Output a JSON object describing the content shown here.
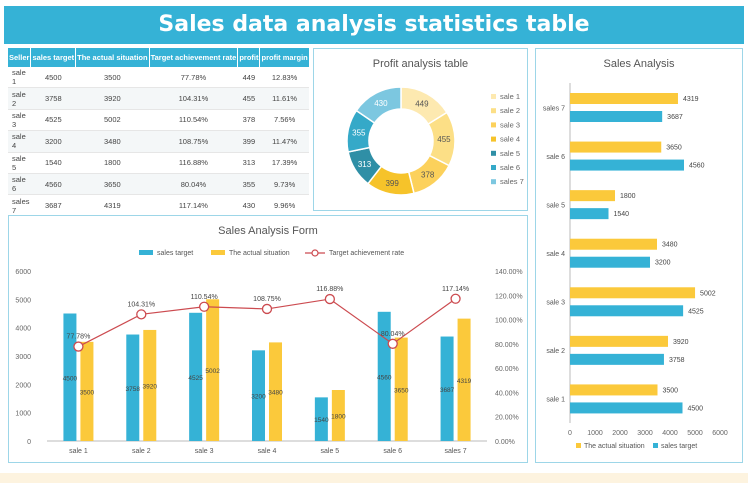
{
  "title": "Sales data analysis statistics table",
  "colors": {
    "banner": "#35b2d6",
    "target": "#35b2d6",
    "actual": "#fbc93b",
    "rate": "#cc4b50"
  },
  "table": {
    "headers": [
      "Seller",
      "sales target",
      "The actual situation",
      "Target achievement rate",
      "profit",
      "profit margin"
    ],
    "rows": [
      [
        "sale 1",
        "4500",
        "3500",
        "77.78%",
        "449",
        "12.83%"
      ],
      [
        "sale 2",
        "3758",
        "3920",
        "104.31%",
        "455",
        "11.61%"
      ],
      [
        "sale 3",
        "4525",
        "5002",
        "110.54%",
        "378",
        "7.56%"
      ],
      [
        "sale 4",
        "3200",
        "3480",
        "108.75%",
        "399",
        "11.47%"
      ],
      [
        "sale 5",
        "1540",
        "1800",
        "116.88%",
        "313",
        "17.39%"
      ],
      [
        "sale 6",
        "4560",
        "3650",
        "80.04%",
        "355",
        "9.73%"
      ],
      [
        "sales 7",
        "3687",
        "4319",
        "117.14%",
        "430",
        "9.96%"
      ]
    ]
  },
  "chart_data": [
    {
      "type": "pie",
      "title": "Profit analysis table",
      "categories": [
        "sale 1",
        "sale 2",
        "sale 3",
        "sale 4",
        "sale 5",
        "sale 6",
        "sales 7"
      ],
      "values": [
        449,
        455,
        378,
        399,
        313,
        355,
        430
      ],
      "colors": [
        "#fde9b0",
        "#fcdf86",
        "#fcd15b",
        "#f6c32a",
        "#2f8fa6",
        "#35a9c8",
        "#7cc7e0"
      ],
      "legend": "right"
    },
    {
      "type": "bar",
      "title": "Sales Analysis Form",
      "categories": [
        "sale 1",
        "sale 2",
        "sale 3",
        "sale 4",
        "sale 5",
        "sale 6",
        "sales 7"
      ],
      "series": [
        {
          "name": "sales target",
          "values": [
            4500,
            3758,
            4525,
            3200,
            1540,
            4560,
            3687
          ],
          "labels": [
            "4500",
            "3758",
            "4525",
            "3200",
            "1540",
            "4560",
            "3687"
          ]
        },
        {
          "name": "The actual situation",
          "values": [
            3500,
            3920,
            5002,
            3480,
            1800,
            3650,
            4319
          ],
          "labels": [
            "3500",
            "3920",
            "5002",
            "3480",
            "1800",
            "3650",
            "4319"
          ]
        },
        {
          "name": "Target achievement rate",
          "type": "line",
          "axis": "right",
          "values": [
            77.78,
            104.31,
            110.54,
            108.75,
            116.88,
            80.04,
            117.14
          ],
          "labels": [
            "77.78%",
            "104.31%",
            "110.54%",
            "108.75%",
            "116.88%",
            "80.04%",
            "117.14%"
          ]
        }
      ],
      "ylim": [
        0,
        6000
      ],
      "yticks": [
        "0",
        "1000",
        "2000",
        "3000",
        "4000",
        "5000",
        "6000"
      ],
      "y2lim": [
        0,
        140
      ],
      "y2ticks": [
        "0.00%",
        "20.00%",
        "40.00%",
        "60.00%",
        "80.00%",
        "100.00%",
        "120.00%",
        "140.00%"
      ],
      "legend": "top"
    },
    {
      "type": "bar",
      "orientation": "horizontal",
      "title": "Sales Analysis",
      "categories": [
        "sale 1",
        "sale 2",
        "sale 3",
        "sale 4",
        "sale 5",
        "sale 6",
        "sales 7"
      ],
      "series": [
        {
          "name": "The actual situation",
          "values": [
            3500,
            3920,
            5002,
            3480,
            1800,
            3650,
            4319
          ],
          "labels": [
            "3500",
            "3920",
            "5002",
            "3480",
            "1800",
            "3650",
            "4319"
          ]
        },
        {
          "name": "sales target",
          "values": [
            4500,
            3758,
            4525,
            3200,
            1540,
            4560,
            3687
          ],
          "labels": [
            "4500",
            "3758",
            "4525",
            "3200",
            "1540",
            "4560",
            "3687"
          ]
        }
      ],
      "xlim": [
        0,
        6000
      ],
      "xticks": [
        "0",
        "1000",
        "2000",
        "3000",
        "4000",
        "5000",
        "6000"
      ],
      "legend": "bottom"
    }
  ]
}
